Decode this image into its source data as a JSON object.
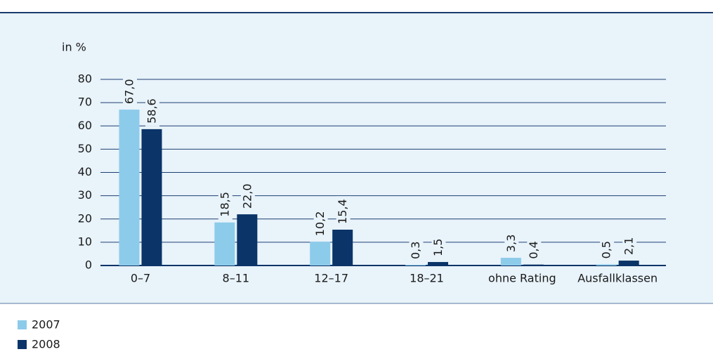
{
  "chart_data": {
    "type": "bar",
    "y_label": "in %",
    "categories": [
      "0–7",
      "8–11",
      "12–17",
      "18–21",
      "ohne Rating",
      "Ausfallklassen"
    ],
    "series": [
      {
        "name": "2007",
        "color": "#8dcbea",
        "values": [
          67.0,
          18.5,
          10.2,
          0.3,
          3.3,
          0.5
        ],
        "value_labels": [
          "67,0",
          "18,5",
          "10,2",
          "0,3",
          "3,3",
          "0,5"
        ]
      },
      {
        "name": "2008",
        "color": "#0b3468",
        "values": [
          58.6,
          22.0,
          15.4,
          1.5,
          0.4,
          2.1
        ],
        "value_labels": [
          "58,6",
          "22,0",
          "15,4",
          "1,5",
          "0,4",
          "2,1"
        ]
      }
    ],
    "ylim": [
      0,
      80
    ],
    "yticks": [
      0,
      10,
      20,
      30,
      40,
      50,
      60,
      70,
      80
    ],
    "grid": true
  }
}
